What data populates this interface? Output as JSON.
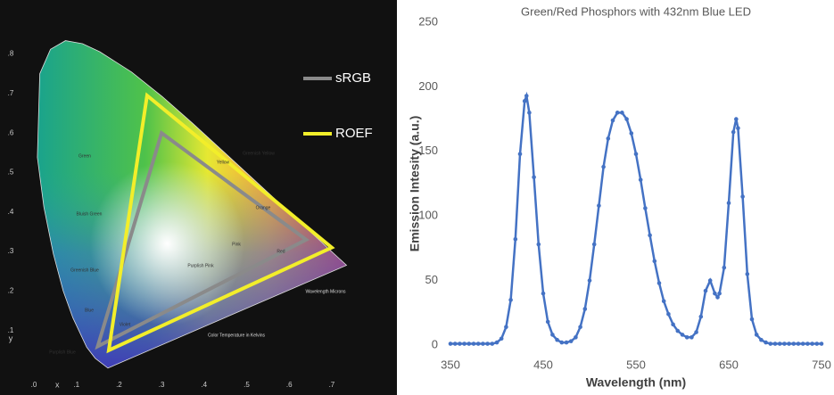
{
  "diagram": {
    "legend": [
      "sRGB",
      "ROEF"
    ],
    "axis_x": "x",
    "axis_y": "y",
    "x_ticks": [
      ".0",
      ".1",
      ".2",
      ".3",
      ".4",
      ".5",
      ".6",
      ".7"
    ],
    "y_ticks": [
      ".8",
      ".7",
      ".6",
      ".5",
      ".4",
      ".3",
      ".2",
      ".1"
    ],
    "regions": [
      "Green",
      "Bluish Green",
      "Greenish Blue",
      "Blue",
      "Purplish Blue",
      "Violet",
      "Purplish Pink",
      "Pink",
      "Red",
      "Orange",
      "Yellow",
      "Greenish Yellow",
      "Wavelength Microns",
      "Color Temperature in Kelvins"
    ]
  },
  "chart_data": {
    "type": "line",
    "title": "Green/Red Phosphors with 432nm Blue LED",
    "x_label": "Wavelength (nm)",
    "y_label": "Emission Intesity (a.u.)",
    "xlim": [
      350,
      750
    ],
    "xticks": [
      350,
      450,
      550,
      650,
      750
    ],
    "ylim": [
      0,
      250
    ],
    "yticks": [
      0,
      50,
      100,
      150,
      200,
      250
    ],
    "grid": false,
    "series": [
      {
        "color": "#4472c4",
        "x": [
          350,
          355,
          360,
          365,
          370,
          375,
          380,
          385,
          390,
          395,
          400,
          405,
          410,
          415,
          420,
          425,
          430,
          432,
          435,
          440,
          445,
          450,
          455,
          460,
          465,
          470,
          475,
          480,
          485,
          490,
          495,
          500,
          505,
          510,
          515,
          520,
          525,
          530,
          535,
          540,
          545,
          550,
          555,
          560,
          565,
          570,
          575,
          580,
          585,
          590,
          595,
          600,
          605,
          610,
          615,
          620,
          625,
          630,
          635,
          638,
          640,
          645,
          650,
          655,
          658,
          660,
          665,
          670,
          675,
          680,
          685,
          690,
          695,
          700,
          705,
          710,
          715,
          720,
          725,
          730,
          735,
          740,
          745,
          750
        ],
        "values": [
          1,
          1,
          1,
          1,
          1,
          1,
          1,
          1,
          1,
          1,
          2,
          5,
          14,
          35,
          82,
          148,
          189,
          193,
          180,
          130,
          78,
          40,
          18,
          8,
          4,
          2,
          2,
          3,
          6,
          14,
          28,
          50,
          78,
          108,
          138,
          160,
          174,
          180,
          180,
          175,
          164,
          148,
          128,
          106,
          85,
          65,
          48,
          34,
          24,
          16,
          11,
          8,
          6,
          6,
          10,
          22,
          42,
          50,
          40,
          37,
          40,
          60,
          110,
          165,
          175,
          168,
          115,
          55,
          20,
          8,
          4,
          2,
          1,
          1,
          1,
          1,
          1,
          1,
          1,
          1,
          1,
          1,
          1,
          1
        ]
      }
    ]
  }
}
